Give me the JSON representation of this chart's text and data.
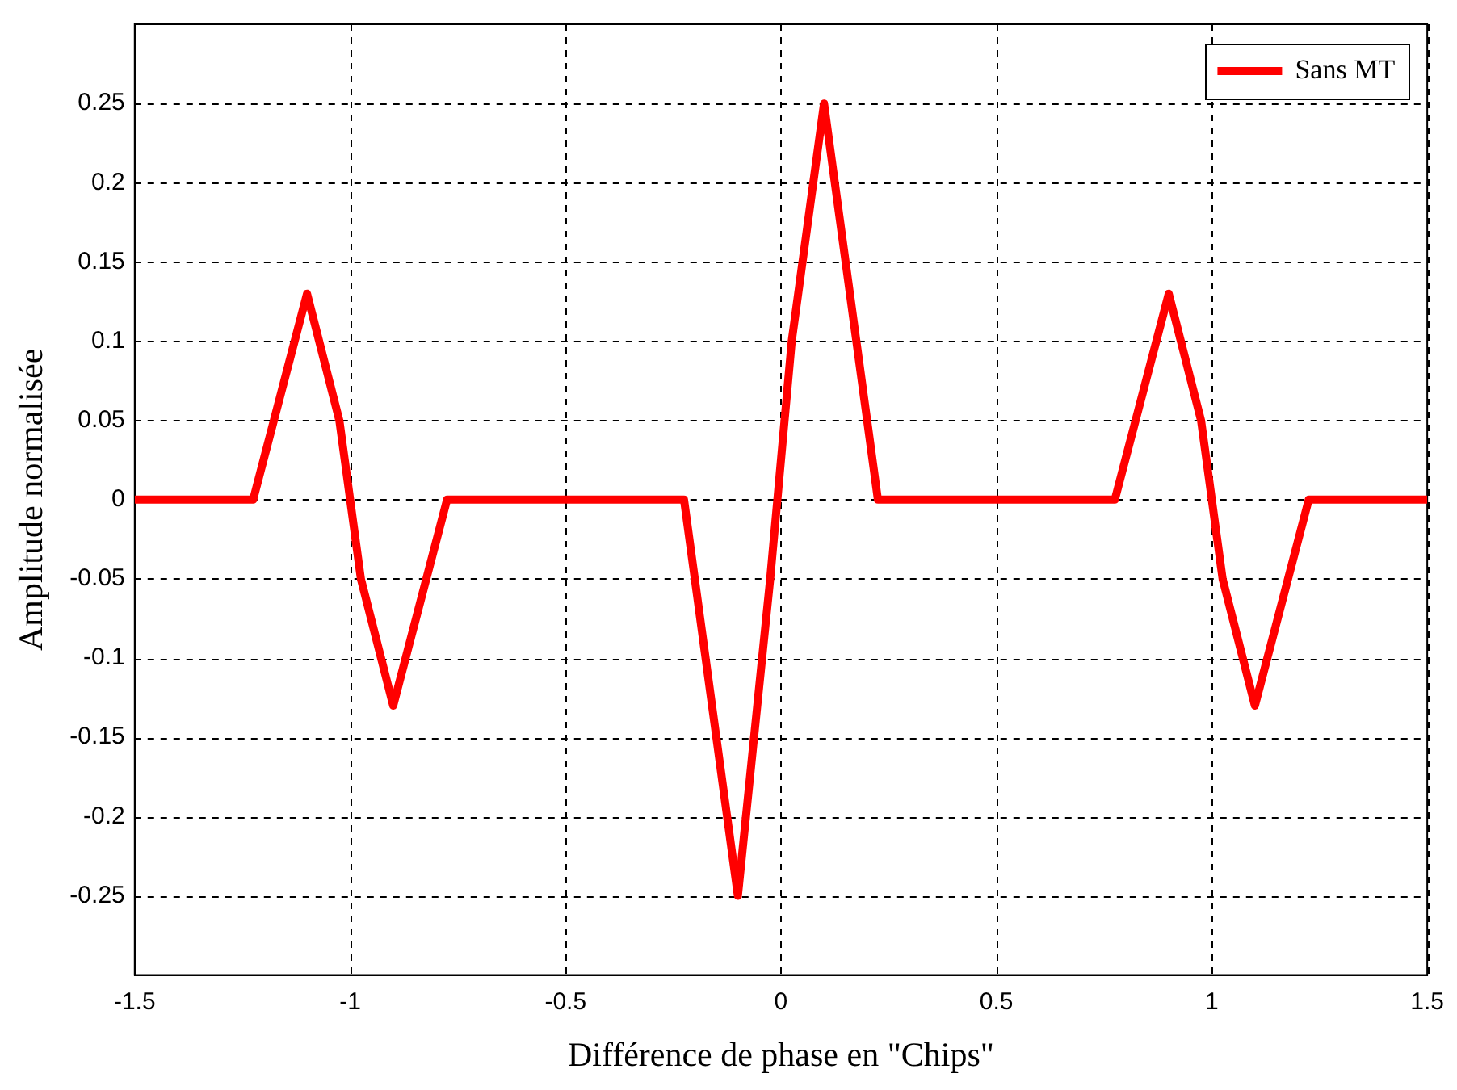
{
  "chart_data": {
    "type": "line",
    "xlabel": "Différence de phase en \"Chips\"",
    "ylabel": "Amplitude normalisée",
    "x": [
      -1.5,
      -1.225,
      -1.1,
      -1.025,
      -0.975,
      -0.9,
      -0.775,
      -0.225,
      -0.1,
      -0.025,
      0.025,
      0.1,
      0.225,
      0.775,
      0.9,
      0.975,
      1.025,
      1.1,
      1.225,
      1.5
    ],
    "series": [
      {
        "name": "Sans MT",
        "color": "#ff0000",
        "values": [
          0,
          0,
          0.13,
          0.05,
          -0.05,
          -0.13,
          0,
          0,
          -0.25,
          -0.05,
          0.1,
          0.25,
          0,
          0,
          0.13,
          0.05,
          -0.05,
          -0.13,
          0,
          0
        ]
      }
    ],
    "xlim": [
      -1.5,
      1.5
    ],
    "xticks": [
      -1.5,
      -1,
      -0.5,
      0,
      0.5,
      1,
      1.5
    ],
    "ylim": [
      -0.3,
      0.3
    ],
    "yticks": [
      -0.25,
      -0.2,
      -0.15,
      -0.1,
      -0.05,
      0,
      0.05,
      0.1,
      0.15,
      0.2,
      0.25
    ],
    "grid": true,
    "legend": "top right",
    "marker": "none",
    "line_style": "solid"
  }
}
